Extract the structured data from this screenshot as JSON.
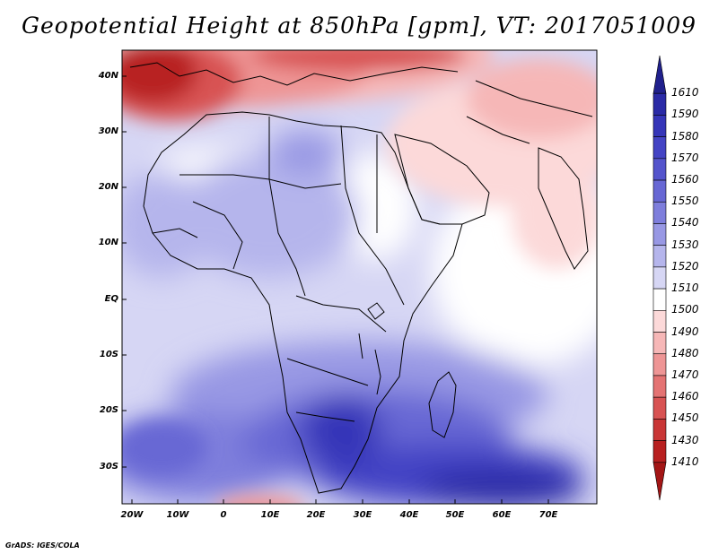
{
  "title": "Geopotential Height at 850hPa [gpm], VT: 2017051009",
  "credit": "GrADS: IGES/COLA",
  "map": {
    "variable": "Geopotential Height",
    "level": "850hPa",
    "units": "gpm",
    "valid_time": "2017051009",
    "lat_labels": [
      "40N",
      "30N",
      "20N",
      "10N",
      "EQ",
      "10S",
      "20S",
      "30S"
    ],
    "lon_labels": [
      "20W",
      "10W",
      "0",
      "10E",
      "20E",
      "30E",
      "40E",
      "50E",
      "60E",
      "70E"
    ]
  },
  "colorbar": {
    "levels": [
      "1610",
      "1590",
      "1580",
      "1570",
      "1560",
      "1550",
      "1540",
      "1530",
      "1520",
      "1510",
      "1500",
      "1490",
      "1480",
      "1470",
      "1460",
      "1450",
      "1430",
      "1410"
    ],
    "colors": [
      "#20208c",
      "#2a2aa6",
      "#3535b8",
      "#4343c4",
      "#5454cc",
      "#6767d4",
      "#7e7edc",
      "#9898e4",
      "#b5b5ec",
      "#d6d6f4",
      "#ffffff",
      "#fcd9d9",
      "#f6b7b7",
      "#ee9595",
      "#e47373",
      "#d85353",
      "#c93636",
      "#b82020",
      "#a31616"
    ]
  }
}
